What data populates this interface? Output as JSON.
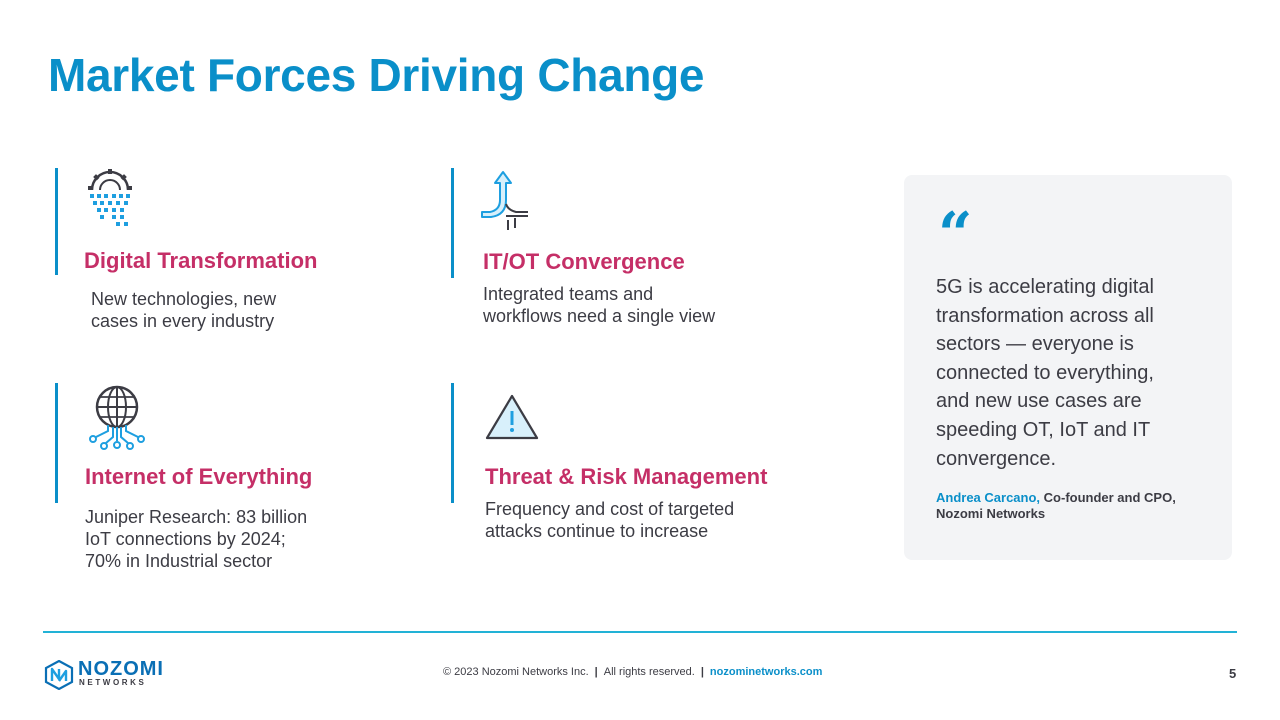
{
  "slide": {
    "title": "Market Forces Driving Change"
  },
  "cards": [
    {
      "icon": "digital-transformation-gear-icon",
      "title": "Digital Transformation",
      "desc_lines": [
        "New technologies, new",
        "cases in every industry"
      ]
    },
    {
      "icon": "convergence-arrow-icon",
      "title": "IT/OT Convergence",
      "desc_lines": [
        "Integrated teams and",
        "workflows need a single view"
      ]
    },
    {
      "icon": "globe-network-icon",
      "title": "Internet of Everything",
      "desc_lines": [
        "Juniper Research: 83 billion",
        "IoT connections by 2024;",
        "70% in Industrial sector"
      ]
    },
    {
      "icon": "warning-triangle-icon",
      "title": "Threat & Risk Management",
      "desc_lines": [
        "Frequency and cost of targeted",
        "attacks continue to increase"
      ]
    }
  ],
  "quote": {
    "mark": "“",
    "lines": [
      "5G is accelerating digital",
      "transformation across all",
      "sectors — everyone is",
      "connected to everything,",
      "and new use cases are",
      "speeding OT, IoT and IT",
      "convergence."
    ],
    "author": "Andrea Carcano,",
    "role": " Co-founder and CPO, Nozomi Networks"
  },
  "footer": {
    "logo_name": "NOZOMI",
    "logo_sub": "NETWORKS",
    "copyright": "© 2023 Nozomi Networks Inc.",
    "separator": "|",
    "rights": "All rights reserved.",
    "website": "nozominetworks.com",
    "page_number": "5"
  },
  "colors": {
    "brand_blue": "#0a8fc9",
    "heading_magenta": "#c52f67",
    "rule_cyan": "#22b2d6",
    "quote_bg": "#f3f4f6"
  }
}
